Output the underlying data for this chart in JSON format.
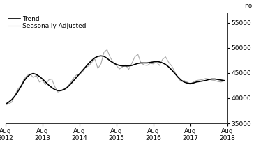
{
  "title": "",
  "ylabel": "no.",
  "ylim": [
    35000,
    57000
  ],
  "yticks": [
    35000,
    40000,
    45000,
    50000,
    55000
  ],
  "xlabel": "",
  "legend": [
    "Trend",
    "Seasonally Adjusted"
  ],
  "trend_color": "#000000",
  "seasonal_color": "#aaaaaa",
  "trend_linewidth": 1.2,
  "seasonal_linewidth": 0.8,
  "background_color": "#ffffff",
  "trend_data": [
    38800,
    39200,
    39700,
    40400,
    41300,
    42300,
    43400,
    44200,
    44700,
    44900,
    44700,
    44300,
    43800,
    43200,
    42600,
    42100,
    41700,
    41500,
    41500,
    41700,
    42100,
    42700,
    43400,
    44100,
    44800,
    45500,
    46200,
    46900,
    47500,
    48000,
    48300,
    48400,
    48300,
    47900,
    47400,
    47000,
    46700,
    46500,
    46400,
    46400,
    46400,
    46500,
    46700,
    46900,
    47000,
    47000,
    47000,
    47100,
    47200,
    47300,
    47200,
    47000,
    46700,
    46200,
    45600,
    44900,
    44200,
    43600,
    43200,
    43000,
    42900,
    43000,
    43200,
    43300,
    43400,
    43500,
    43700,
    43800,
    43800,
    43700,
    43600,
    43500
  ],
  "seasonal_data": [
    38600,
    38900,
    39200,
    40500,
    41800,
    42500,
    43800,
    44500,
    44800,
    44100,
    44500,
    43200,
    43500,
    42700,
    43600,
    43800,
    42300,
    41200,
    41500,
    41900,
    42200,
    43000,
    43900,
    44600,
    44700,
    45200,
    46100,
    46400,
    47100,
    47800,
    45900,
    46800,
    49200,
    49600,
    48100,
    47100,
    46500,
    45800,
    46200,
    46600,
    45700,
    46900,
    48200,
    48700,
    47000,
    46600,
    46500,
    46900,
    46800,
    47200,
    46500,
    47700,
    48200,
    47100,
    46400,
    45200,
    44100,
    43300,
    43500,
    43200,
    42700,
    43200,
    43500,
    43600,
    43700,
    43900,
    43800,
    43600,
    43500,
    43300,
    43200,
    43400
  ],
  "x_tick_positions": [
    0,
    12,
    24,
    36,
    48,
    60,
    72
  ],
  "x_tick_labels": [
    "Aug\n2012",
    "Aug\n2013",
    "Aug\n2014",
    "Aug\n2015",
    "Aug\n2016",
    "Aug\n2017",
    "Aug\n2018"
  ]
}
